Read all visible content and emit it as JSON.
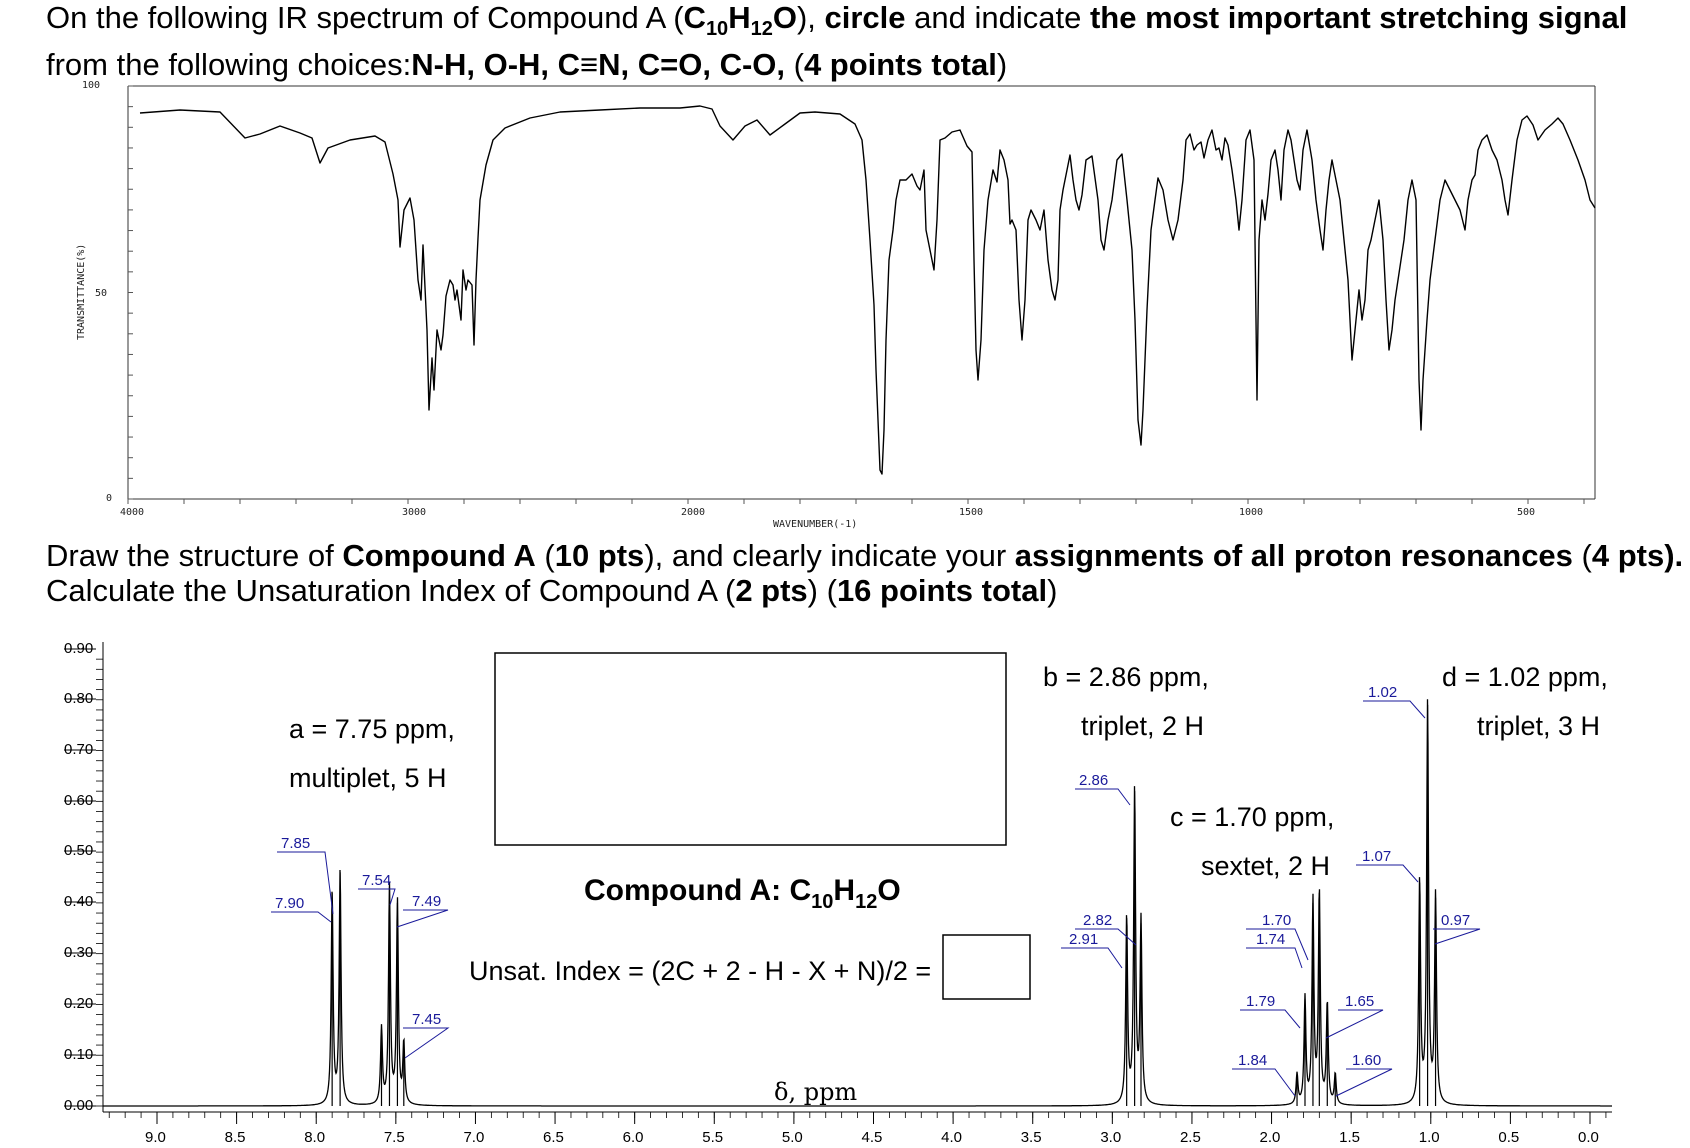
{
  "question1": {
    "p1": "On the following IR spectrum of Compound A (",
    "formula_C": "C",
    "formula_c_sub": "10",
    "formula_H": "H",
    "formula_h_sub": "12",
    "formula_O": "O",
    "p2": "), ",
    "b1": "circle",
    "p3": " and indicate ",
    "b2": "the most important stretching signal",
    "p4": " from the following choices:",
    "b3": "N-H, O-H, C≡N, C=O, C-O,",
    "p5": " (",
    "b4": "4 points total",
    "p6": ")"
  },
  "question2": {
    "p1": "Draw the structure of ",
    "b1": "Compound A",
    "p2": " (",
    "b2": "10 pts",
    "p3": "), and clearly indicate your ",
    "b3": "assignments of all proton resonances",
    "p4": " (",
    "b4": "4 pts).",
    "p5": " Calculate the Unsaturation Index of Compound A (",
    "b5": "2 pts",
    "p6": ") (",
    "b6": "16 points total",
    "p7": ")"
  },
  "ir": {
    "ylabel": "TRANSMITTANCE(%)",
    "xlabel": "WAVENUMBER(-1)",
    "y_ticks": [
      "100",
      "50",
      "0"
    ],
    "x_ticks": [
      "4000",
      "3000",
      "2000",
      "1500",
      "1000",
      "500"
    ],
    "line_color": "#000000"
  },
  "nmr": {
    "xlabel": "δ, ppm",
    "y_ticks": [
      "0.90",
      "0.80",
      "0.70",
      "0.60",
      "0.50",
      "0.40",
      "0.30",
      "0.20",
      "0.10",
      "0.00"
    ],
    "x_ticks": [
      "9.0",
      "8.5",
      "8.0",
      "7.5",
      "7.0",
      "6.5",
      "6.0",
      "5.5",
      "5.0",
      "4.5",
      "4.0",
      "3.5",
      "3.0",
      "2.5",
      "2.0",
      "1.5",
      "1.0",
      "0.5",
      "0.0"
    ],
    "peak_labels": [
      "7.85",
      "7.90",
      "7.54",
      "7.49",
      "7.45",
      "2.86",
      "2.82",
      "2.91",
      "1.70",
      "1.74",
      "1.79",
      "1.65",
      "1.84",
      "1.60",
      "1.02",
      "1.07",
      "0.97"
    ],
    "annotations": {
      "a1": "a = 7.75 ppm,",
      "a2": "multiplet, 5 H",
      "b1": "b = 2.86 ppm,",
      "b2": "triplet, 2 H",
      "c1": "c = 1.70 ppm,",
      "c2": "sextet, 2 H",
      "d1": "d = 1.02 ppm,",
      "d2": "triplet, 3 H"
    },
    "compound_label": "Compound A: C",
    "compound_c_sub": "10",
    "compound_h": "H",
    "compound_h_sub": "12",
    "compound_o": "O",
    "unsat_formula": "Unsat. Index = (2C + 2 - H - X + N)/2 =",
    "label_color": "#1a1a9a"
  },
  "chart_data": {
    "type": "line",
    "title": "",
    "xlabel": "δ, ppm",
    "ylabel": "",
    "xlim": [
      9.3,
      -0.2
    ],
    "ylim": [
      0,
      0.9
    ],
    "series": [
      {
        "peaks_ppm": [
          7.9,
          7.85,
          7.59,
          7.54,
          7.49,
          7.45,
          2.91,
          2.86,
          2.82,
          1.84,
          1.79,
          1.74,
          1.7,
          1.65,
          1.6,
          1.07,
          1.02,
          0.97
        ],
        "heights": [
          0.42,
          0.46,
          0.15,
          0.43,
          0.4,
          0.12,
          0.37,
          0.62,
          0.36,
          0.06,
          0.21,
          0.4,
          0.42,
          0.2,
          0.06,
          0.44,
          0.79,
          0.41
        ]
      }
    ]
  }
}
